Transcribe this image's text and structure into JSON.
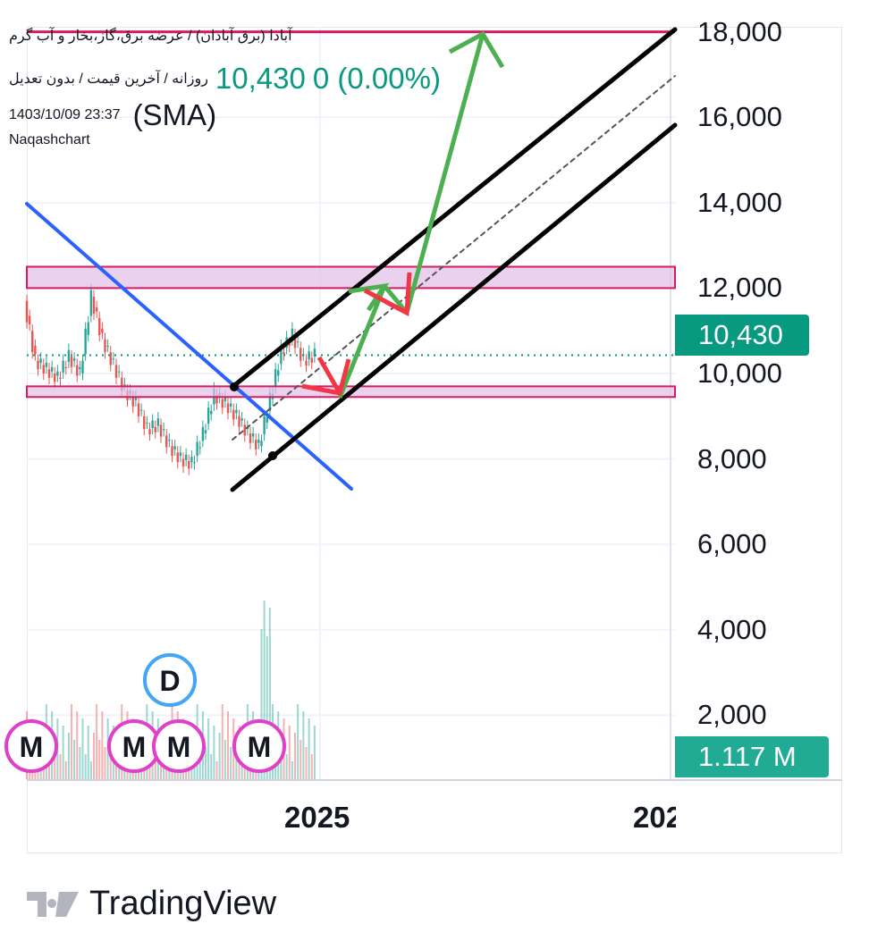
{
  "header": {
    "symbol_line": "آبادا (برق آبادان) / عرضه برق،گاز،بخار و آب گرم",
    "settings_line": "روزانه / آخرین قیمت / بدون تعدیل",
    "last_price": "10,430",
    "change": "0 (0.00%)",
    "datetime": "1403/10/09 23:37",
    "author": "Naqashchart",
    "indicator": "(SMA)"
  },
  "colors": {
    "up": "#26a69a",
    "down": "#ef5350",
    "accent": "#089981",
    "zone": "#e1bee7",
    "zone_border": "#d81b60",
    "channel": "#000000",
    "trendline": "#2962ff",
    "arrow_up": "#4caf50",
    "arrow_down": "#f23645"
  },
  "price_tag": "10,430",
  "volume_tag": "1.117 M",
  "markers": {
    "m": "M",
    "d": "D"
  },
  "footer": {
    "brand": "TradingView"
  },
  "chart_data": {
    "type": "candlestick",
    "y_ticks": [
      "18,000",
      "16,000",
      "14,000",
      "12,000",
      "10,000",
      "8,000",
      "6,000",
      "4,000",
      "2,000"
    ],
    "ylim": [
      1000,
      18200
    ],
    "x_ticks": [
      "2025",
      "202"
    ],
    "approx_close": [
      11700,
      10300,
      10100,
      9900,
      10400,
      10000,
      11800,
      10800,
      10200,
      9600,
      9300,
      8700,
      8800,
      8300,
      8000,
      7900,
      8600,
      9500,
      9300,
      9000,
      8600,
      8300,
      9400,
      10500,
      10900,
      10300,
      10430
    ],
    "zones": [
      [
        12000,
        12500
      ],
      [
        9450,
        9700
      ]
    ],
    "levels": [
      18000,
      10430
    ],
    "grid": true
  }
}
